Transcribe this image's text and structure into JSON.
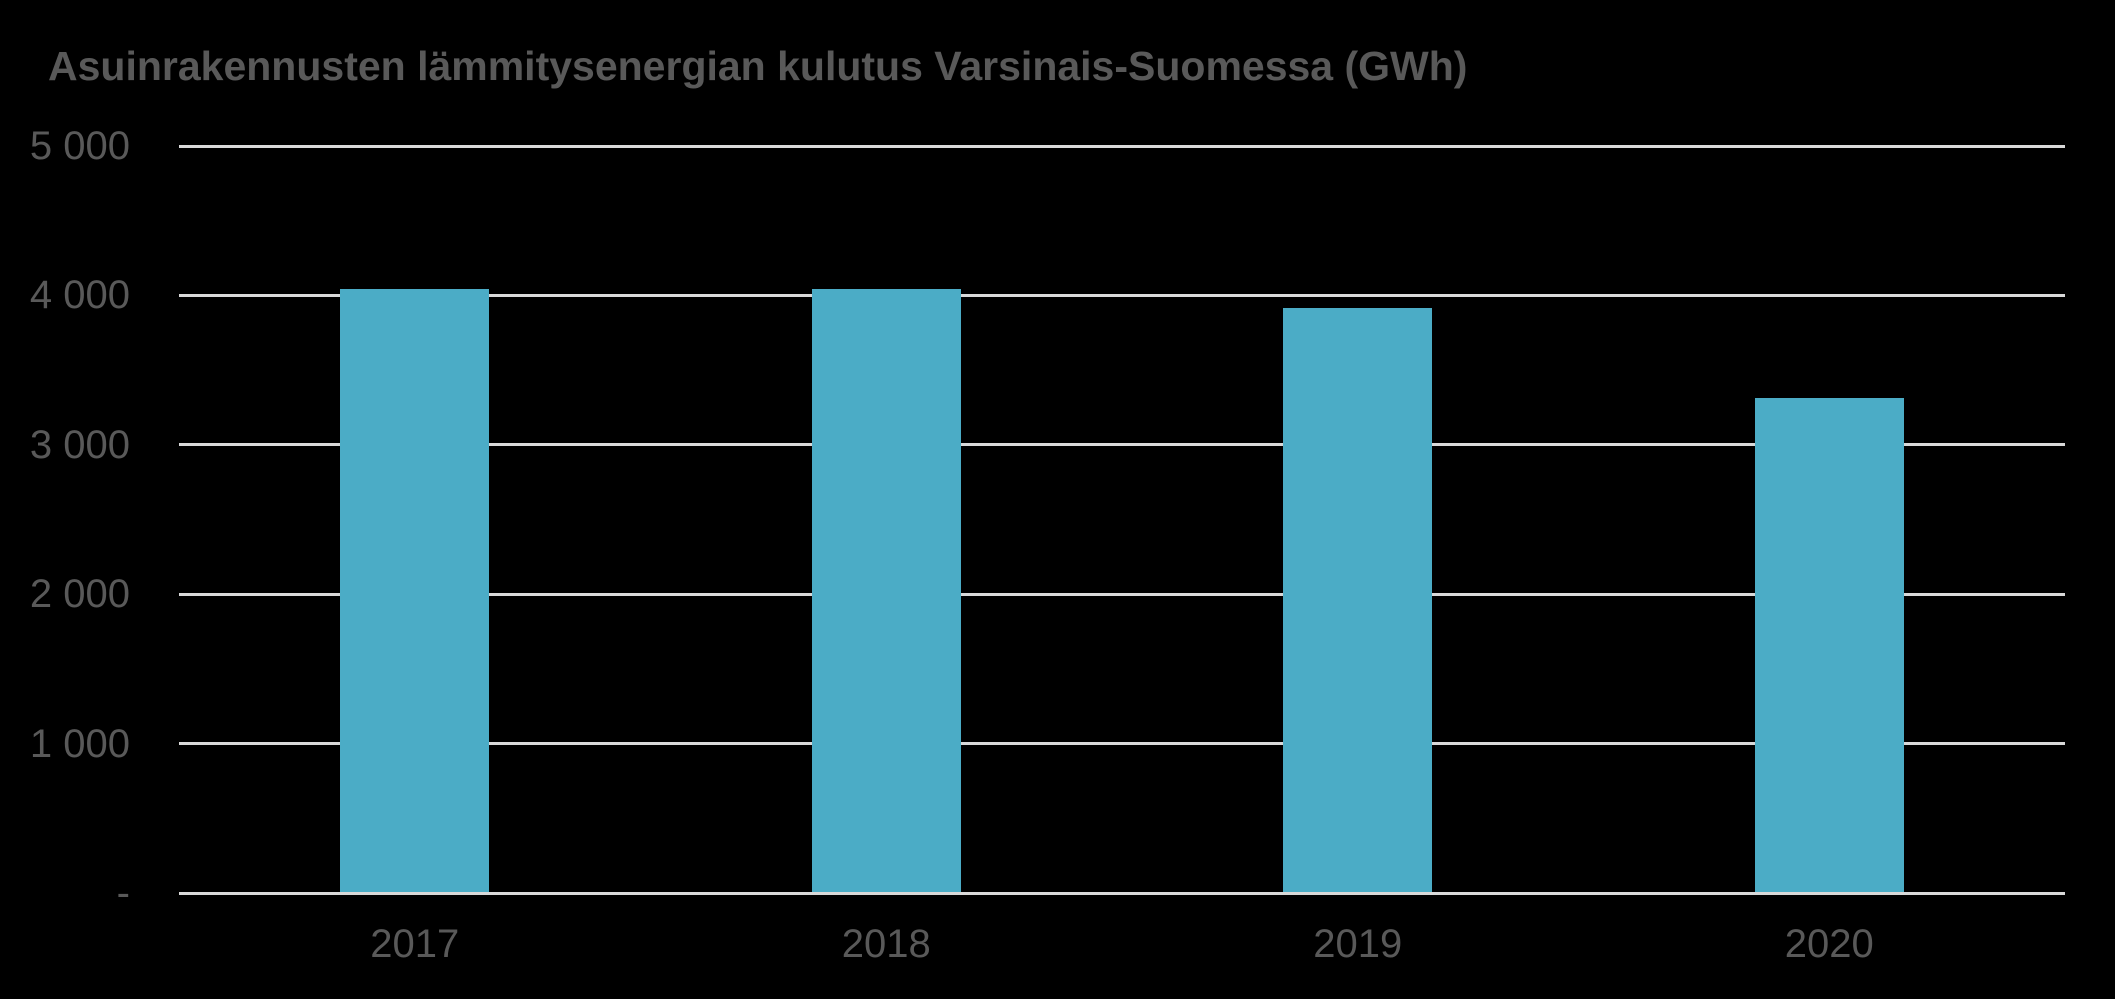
{
  "colors": {
    "background": "#000000",
    "title_text": "#595959",
    "axis_text": "#595959",
    "gridline": "#D9D9D9",
    "axis_line": "#D9D9D9",
    "bar": "#4BACC6"
  },
  "chart_data": {
    "type": "bar",
    "title": "Asuinrakennusten lämmitysenergian kulutus Varsinais-Suomessa (GWh)",
    "unit": "GWh",
    "categories": [
      "2017",
      "2018",
      "2019",
      "2020"
    ],
    "values": [
      4040,
      4040,
      3915,
      3315
    ],
    "xlabel": "",
    "ylabel": "",
    "ylim": [
      0,
      5000
    ],
    "ytick_interval": 1000,
    "yticks": [
      {
        "value": 0,
        "label": "-"
      },
      {
        "value": 1000,
        "label": "1 000"
      },
      {
        "value": 2000,
        "label": "2 000"
      },
      {
        "value": 3000,
        "label": "3 000"
      },
      {
        "value": 4000,
        "label": "4 000"
      },
      {
        "value": 5000,
        "label": "5 000"
      }
    ],
    "grid": "horizontal",
    "legend": "none",
    "bar_color": "#4BACC6"
  }
}
